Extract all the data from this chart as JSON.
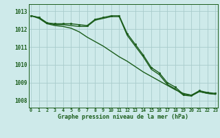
{
  "title": "Graphe pression niveau de la mer (hPa)",
  "bg_color": "#ceeaea",
  "grid_color": "#a8cccc",
  "line_color": "#1a5c1a",
  "x_labels": [
    "0",
    "1",
    "2",
    "3",
    "4",
    "5",
    "6",
    "7",
    "8",
    "9",
    "10",
    "11",
    "12",
    "13",
    "14",
    "15",
    "16",
    "17",
    "18",
    "19",
    "20",
    "21",
    "22",
    "23"
  ],
  "ylim": [
    1007.6,
    1013.4
  ],
  "yticks": [
    1008,
    1009,
    1010,
    1011,
    1012,
    1013
  ],
  "series1": [
    1012.75,
    1012.65,
    1012.35,
    1012.3,
    1012.3,
    1012.3,
    1012.25,
    1012.2,
    1012.55,
    1012.65,
    1012.75,
    1012.75,
    1011.75,
    1011.15,
    1010.55,
    1009.85,
    1009.55,
    1009.0,
    1008.75,
    1008.35,
    1008.3,
    1008.55,
    1008.45,
    1008.4
  ],
  "series2": [
    1012.75,
    1012.65,
    1012.35,
    1012.25,
    1012.25,
    1012.2,
    1012.15,
    1012.15,
    1012.5,
    1012.6,
    1012.7,
    1012.7,
    1011.65,
    1011.05,
    1010.45,
    1009.75,
    1009.45,
    1008.9,
    1008.65,
    1008.3,
    1008.25,
    1008.5,
    1008.4,
    1008.35
  ],
  "series3": [
    1012.75,
    1012.6,
    1012.3,
    1012.2,
    1012.15,
    1012.05,
    1011.85,
    1011.55,
    1011.3,
    1011.05,
    1010.75,
    1010.45,
    1010.2,
    1009.9,
    1009.6,
    1009.35,
    1009.1,
    1008.85,
    1008.6,
    1008.4,
    1008.3,
    1008.5,
    1008.4,
    1008.35
  ]
}
